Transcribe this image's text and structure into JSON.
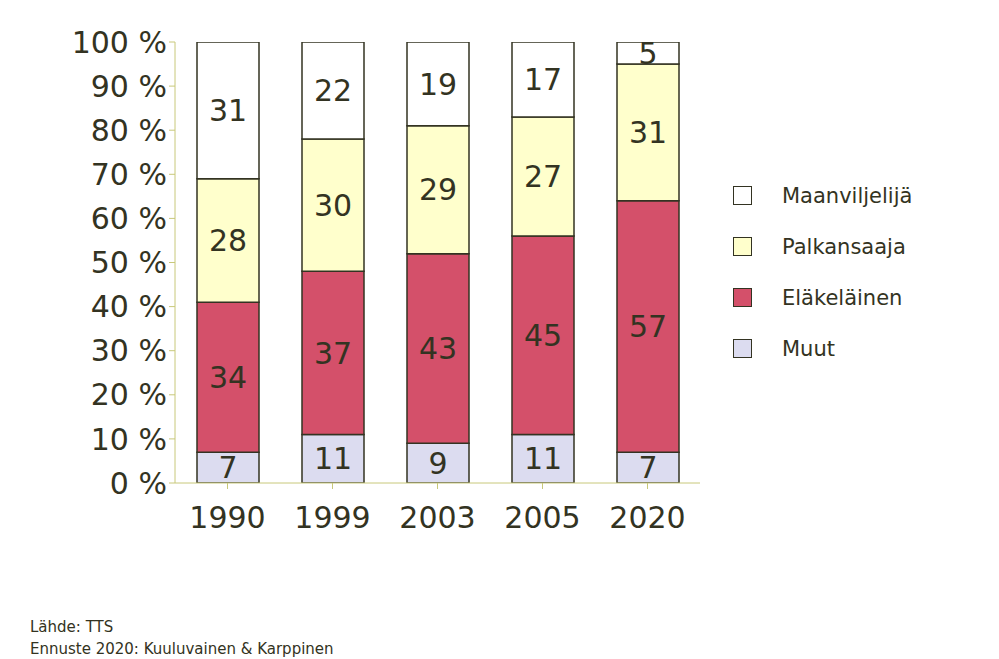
{
  "chart_data": {
    "type": "bar",
    "stacked": true,
    "data_labels": true,
    "grid": false,
    "legend": "right",
    "categories": [
      "1990",
      "1999",
      "2003",
      "2005",
      "2020"
    ],
    "series": [
      {
        "name": "Maanviljelijä",
        "color": "#ffffff",
        "values": [
          31,
          22,
          19,
          17,
          5
        ]
      },
      {
        "name": "Palkansaaja",
        "color": "#ffffcc",
        "values": [
          28,
          30,
          29,
          27,
          31
        ]
      },
      {
        "name": "Eläkeläinen",
        "color": "#d4506a",
        "values": [
          34,
          37,
          43,
          45,
          57
        ]
      },
      {
        "name": "Muut",
        "color": "#dcdcf0",
        "values": [
          7,
          11,
          9,
          11,
          7
        ]
      }
    ],
    "ylim": [
      0,
      100
    ],
    "yticks": [
      {
        "value": 0,
        "label": "0 %"
      },
      {
        "value": 10,
        "label": "10 %"
      },
      {
        "value": 20,
        "label": "20 %"
      },
      {
        "value": 30,
        "label": "30 %"
      },
      {
        "value": 40,
        "label": "40 %"
      },
      {
        "value": 50,
        "label": "50 %"
      },
      {
        "value": 60,
        "label": "60 %"
      },
      {
        "value": 70,
        "label": "70 %"
      },
      {
        "value": 80,
        "label": "80 %"
      },
      {
        "value": 90,
        "label": "90 %"
      },
      {
        "value": 100,
        "label": "100 %"
      }
    ],
    "annotations": [
      "Lähde: TTS",
      "Ennuste 2020: Kuuluvainen & Karppinen"
    ]
  }
}
